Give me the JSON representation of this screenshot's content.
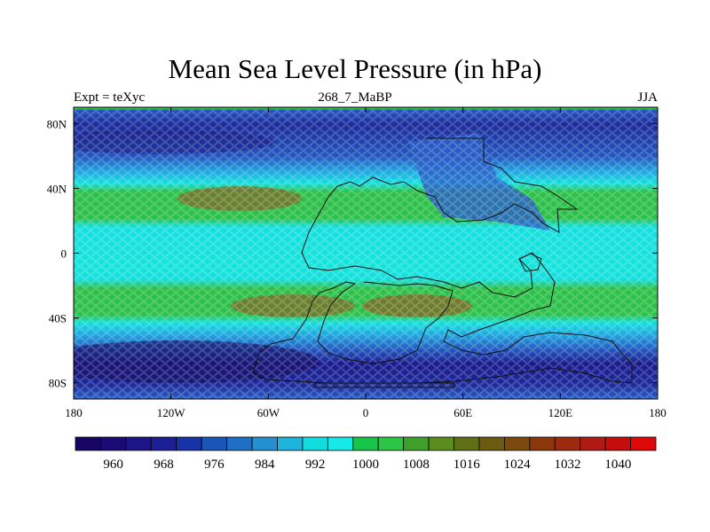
{
  "title": "Mean Sea Level Pressure (in hPa)",
  "subtitle_left": "Expt = teXyc",
  "subtitle_center": "268_7_MaBP",
  "subtitle_right": "JJA",
  "map": {
    "lon_range": [
      -180,
      180
    ],
    "lat_range": [
      -90,
      90
    ],
    "lon_ticks": [
      "180",
      "120W",
      "60W",
      "0",
      "60E",
      "120E",
      "180"
    ],
    "lat_ticks": [
      "80N",
      "40N",
      "0",
      "40S",
      "80S"
    ]
  },
  "colorbar": {
    "colors": [
      "#160661",
      "#1a0a73",
      "#1d1487",
      "#1c1f96",
      "#1932a7",
      "#1a55b8",
      "#1f6fc4",
      "#2590d1",
      "#1fb4dc",
      "#13dcde",
      "#16e9e6",
      "#17c54a",
      "#2bc645",
      "#3f9f2a",
      "#5a8d1e",
      "#5f6f16",
      "#6b5b10",
      "#7c4a0c",
      "#8c360b",
      "#9c2a0f",
      "#b01a14",
      "#c50d0e",
      "#df0808"
    ],
    "labels": [
      "960",
      "968",
      "976",
      "984",
      "992",
      "1000",
      "1008",
      "1016",
      "1024",
      "1032",
      "1040"
    ]
  },
  "colors": {
    "deep_blue": "#1a1788",
    "blue": "#2a59c8",
    "light_blue": "#2a9fe0",
    "cyan": "#14e4de",
    "green": "#2ec14a",
    "brown": "#7d6a25"
  }
}
